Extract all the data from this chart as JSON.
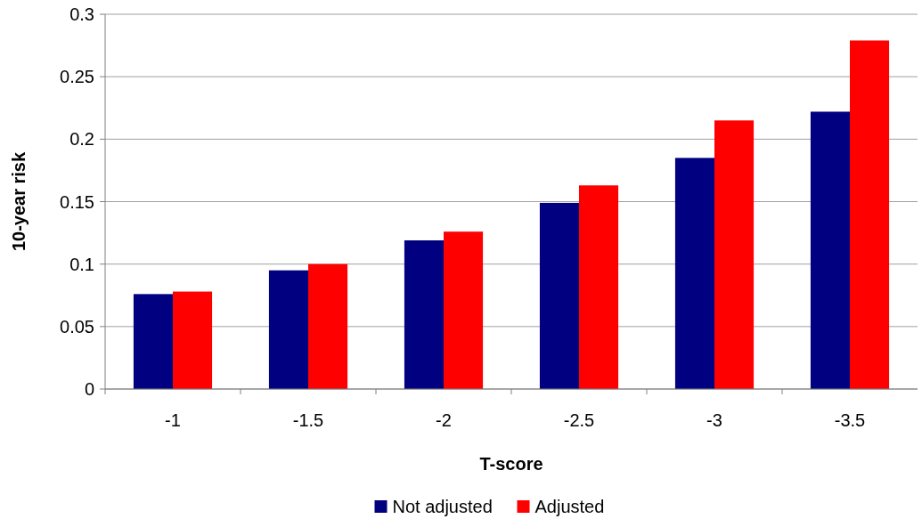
{
  "chart_data": {
    "type": "bar",
    "xlabel": "T-score",
    "ylabel": "10-year risk",
    "categories": [
      "-1",
      "-1.5",
      "-2",
      "-2.5",
      "-3",
      "-3.5"
    ],
    "series": [
      {
        "name": "Not adjusted",
        "color": "#000080",
        "values": [
          0.076,
          0.095,
          0.119,
          0.149,
          0.185,
          0.222
        ]
      },
      {
        "name": "Adjusted",
        "color": "#ff0000",
        "values": [
          0.078,
          0.1,
          0.126,
          0.163,
          0.215,
          0.279
        ]
      }
    ],
    "ylim": [
      0,
      0.3
    ],
    "yticks": [
      0,
      0.05,
      0.1,
      0.15,
      0.2,
      0.25,
      0.3
    ],
    "grid": "y",
    "legend": "bottom"
  }
}
